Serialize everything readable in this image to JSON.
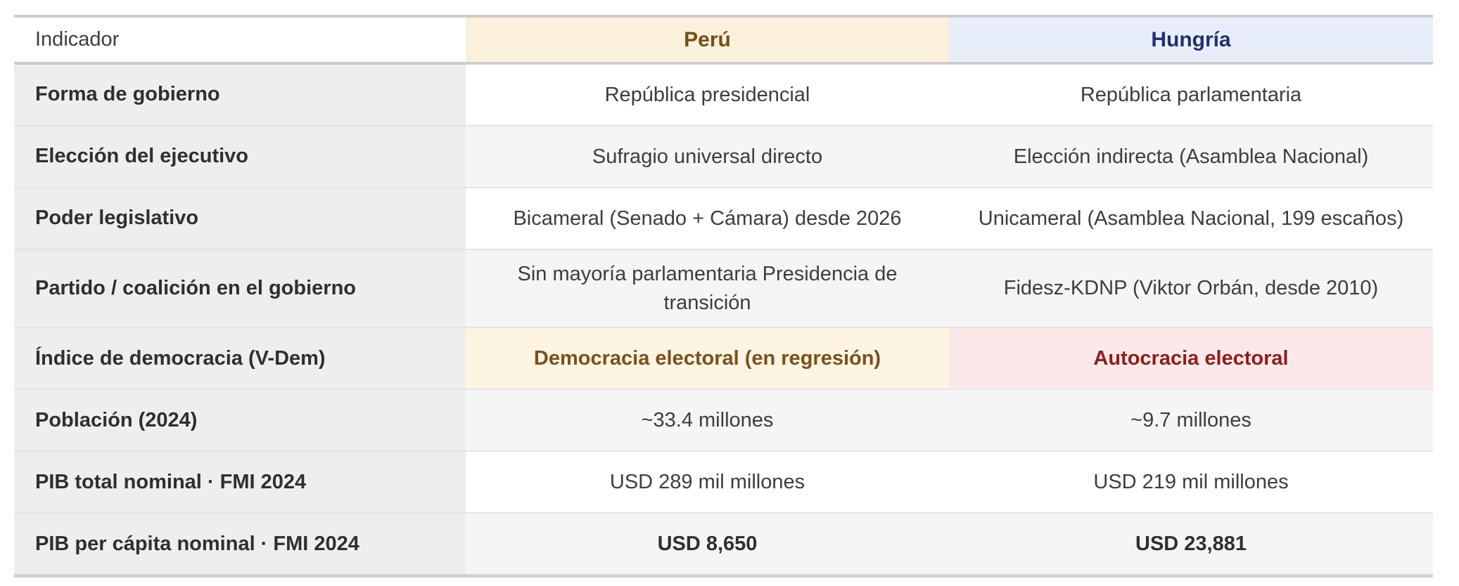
{
  "table": {
    "header": {
      "indicator_label": "Indicador",
      "peru_label": "Perú",
      "hungria_label": "Hungría"
    },
    "rows": [
      {
        "label": "Forma de gobierno",
        "peru": "República presidencial",
        "hungria": "República parlamentaria"
      },
      {
        "label": "Elección del ejecutivo",
        "peru": "Sufragio universal directo",
        "hungria": "Elección indirecta (Asamblea Nacional)"
      },
      {
        "label": "Poder legislativo",
        "peru": "Bicameral (Senado + Cámara) desde 2026",
        "hungria": "Unicameral (Asamblea Nacional, 199 escaños)"
      },
      {
        "label": "Partido / coalición en el gobierno",
        "peru": "Sin mayoría parlamentaria Presidencia de transición",
        "hungria": "Fidesz-KDNP (Viktor Orbán, desde 2010)"
      },
      {
        "label": "Índice de democracia (V-Dem)",
        "peru": "Democracia electoral (en regresión)",
        "hungria": "Autocracia electoral",
        "style": "vdem"
      },
      {
        "label": "Población (2024)",
        "peru": "~33.4 millones",
        "hungria": "~9.7 millones"
      },
      {
        "label": "PIB total nominal · FMI 2024",
        "peru": "USD 289 mil millones",
        "hungria": "USD 219 mil millones"
      },
      {
        "label": "PIB per cápita nominal · FMI 2024",
        "peru": "USD 8,650",
        "hungria": "USD 23,881",
        "bold_values": true
      }
    ],
    "colors": {
      "peru_header_bg": "#faf0dc",
      "peru_header_text": "#774c16",
      "hungria_header_bg": "#e8eef9",
      "hungria_header_text": "#1d3270",
      "vdem_peru_bg": "#fdf4e2",
      "vdem_peru_text": "#7a501e",
      "vdem_hungria_bg": "#fbe9e9",
      "vdem_hungria_text": "#8f1d1d"
    }
  },
  "chart_data": {
    "type": "table",
    "title": "",
    "columns": [
      "Indicador",
      "Perú",
      "Hungría"
    ],
    "rows": [
      [
        "Forma de gobierno",
        "República presidencial",
        "República parlamentaria"
      ],
      [
        "Elección del ejecutivo",
        "Sufragio universal directo",
        "Elección indirecta (Asamblea Nacional)"
      ],
      [
        "Poder legislativo",
        "Bicameral (Senado + Cámara) desde 2026",
        "Unicameral (Asamblea Nacional, 199 escaños)"
      ],
      [
        "Partido / coalición en el gobierno",
        "Sin mayoría parlamentaria Presidencia de transición",
        "Fidesz-KDNP (Viktor Orbán, desde 2010)"
      ],
      [
        "Índice de democracia (V-Dem)",
        "Democracia electoral (en regresión)",
        "Autocracia electoral"
      ],
      [
        "Población (2024)",
        "~33.4 millones",
        "~9.7 millones"
      ],
      [
        "PIB total nominal · FMI 2024",
        "USD 289 mil millones",
        "USD 219 mil millones"
      ],
      [
        "PIB per cápita nominal · FMI 2024",
        "USD 8,650",
        "USD 23,881"
      ]
    ]
  }
}
